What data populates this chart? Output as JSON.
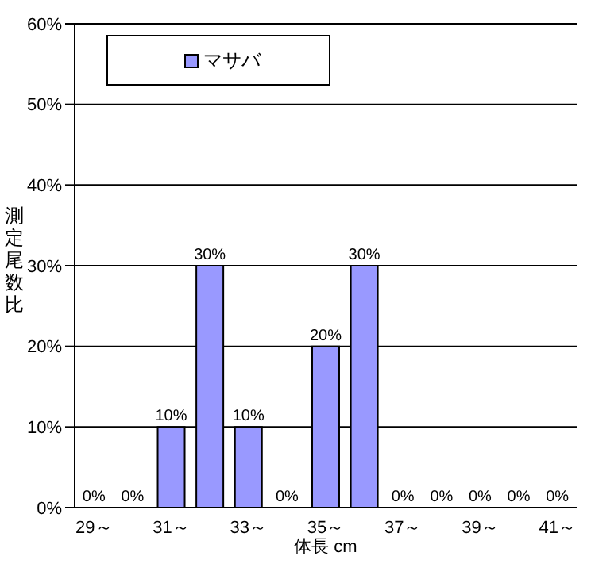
{
  "chart_data": {
    "type": "bar",
    "xlabel": "体長 cm",
    "ylabel": "測定尾数比",
    "categories": [
      "29～",
      null,
      "31～",
      null,
      "33～",
      null,
      "35～",
      null,
      "37～",
      null,
      "39～",
      null,
      "41～"
    ],
    "series": [
      {
        "name": "マサバ",
        "color": "#9999ff",
        "values": [
          0,
          0,
          10,
          30,
          10,
          0,
          20,
          30,
          0,
          0,
          0,
          0,
          0
        ],
        "value_labels": [
          "0%",
          "0%",
          "10%",
          "30%",
          "10%",
          "0%",
          "20%",
          "30%",
          "0%",
          "0%",
          "0%",
          "0%",
          "0%"
        ]
      }
    ],
    "ylim": [
      0,
      60
    ],
    "yticks": [
      {
        "value": 0,
        "label": "0%"
      },
      {
        "value": 10,
        "label": "10%"
      },
      {
        "value": 20,
        "label": "20%"
      },
      {
        "value": 30,
        "label": "30%"
      },
      {
        "value": 40,
        "label": "40%"
      },
      {
        "value": 50,
        "label": "50%"
      },
      {
        "value": 60,
        "label": "60%"
      }
    ],
    "grid": "y",
    "legend": "top left"
  }
}
